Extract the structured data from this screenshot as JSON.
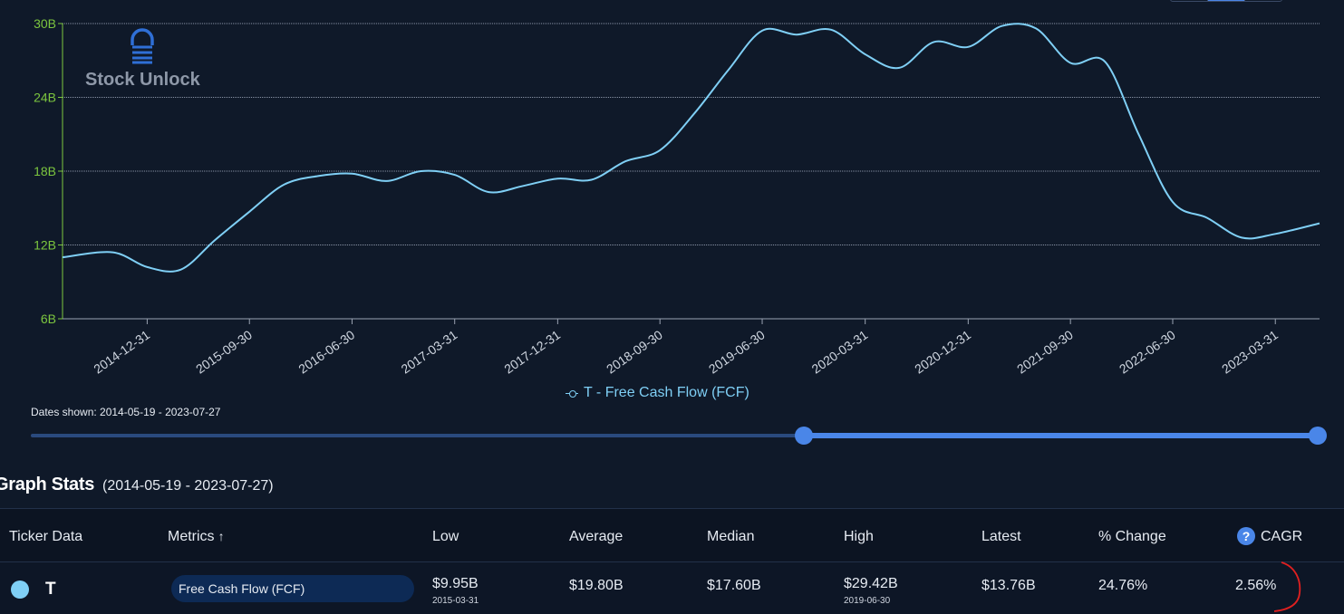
{
  "watermark": {
    "brand": "Stock Unlock"
  },
  "chart_data": {
    "type": "line",
    "title": "",
    "xlabel": "",
    "ylabel": "",
    "ylim": [
      6,
      30
    ],
    "y_ticks": [
      "6B",
      "12B",
      "18B",
      "24B",
      "30B"
    ],
    "y_tick_values": [
      6,
      12,
      18,
      24,
      30
    ],
    "x_tick_labels": [
      "2014-12-31",
      "2015-09-30",
      "2016-06-30",
      "2017-03-31",
      "2017-12-31",
      "2018-09-30",
      "2019-06-30",
      "2020-03-31",
      "2020-12-31",
      "2021-09-30",
      "2022-06-30",
      "2023-03-31"
    ],
    "x_range": [
      "2014-05-19",
      "2023-07-27"
    ],
    "grid": "horizontal",
    "legend_position": "bottom-center",
    "colors": {
      "series": "#7fcff5",
      "axis": "#7cc63f",
      "tick_text": "#7cc63f",
      "x_tick_text": "#cfd6e0",
      "grid": "#8a94a6"
    },
    "series": [
      {
        "name": "T - Free Cash Flow (FCF)",
        "x": [
          "2014-05-19",
          "2014-09-30",
          "2014-12-31",
          "2015-03-31",
          "2015-06-30",
          "2015-09-30",
          "2015-12-31",
          "2016-03-31",
          "2016-06-30",
          "2016-09-30",
          "2016-12-31",
          "2017-03-31",
          "2017-06-30",
          "2017-09-30",
          "2017-12-31",
          "2018-03-31",
          "2018-06-30",
          "2018-09-30",
          "2018-12-31",
          "2019-03-31",
          "2019-06-30",
          "2019-09-30",
          "2019-12-31",
          "2020-03-31",
          "2020-06-30",
          "2020-09-30",
          "2020-12-31",
          "2021-03-31",
          "2021-06-30",
          "2021-09-30",
          "2021-12-31",
          "2022-03-31",
          "2022-06-30",
          "2022-09-30",
          "2022-12-31",
          "2023-03-31",
          "2023-07-27"
        ],
        "values": [
          11.0,
          11.4,
          10.2,
          10.0,
          12.4,
          14.7,
          16.9,
          17.6,
          17.8,
          17.2,
          18.0,
          17.7,
          16.3,
          16.8,
          17.4,
          17.3,
          18.8,
          19.7,
          22.7,
          26.2,
          29.42,
          29.1,
          29.5,
          27.5,
          26.4,
          28.5,
          28.1,
          29.8,
          29.6,
          26.8,
          26.9,
          21.0,
          15.5,
          14.2,
          12.6,
          12.9,
          13.76
        ]
      }
    ]
  },
  "legend": {
    "label": "T - Free Cash Flow (FCF)"
  },
  "date_range": {
    "label": "Dates shown: 2014-05-19 - 2023-07-27",
    "selection_start_fraction": 0.6,
    "selection_end_fraction": 1.0
  },
  "stats": {
    "title": "Graph Stats",
    "range": "(2014-05-19 - 2023-07-27)",
    "headers": {
      "ticker": "Ticker Data",
      "metrics": "Metrics",
      "sort_arrow": "↑",
      "low": "Low",
      "average": "Average",
      "median": "Median",
      "high": "High",
      "latest": "Latest",
      "change": "% Change",
      "cagr": "CAGR",
      "help": "?"
    },
    "row": {
      "ticker": "T",
      "metric": "Free Cash Flow (FCF)",
      "low": "$9.95B",
      "low_date": "2015-03-31",
      "average": "$19.80B",
      "median": "$17.60B",
      "high": "$29.42B",
      "high_date": "2019-06-30",
      "latest": "$13.76B",
      "change": "24.76%",
      "cagr": "2.56%"
    }
  },
  "annotation": {
    "color": "#e02020"
  }
}
